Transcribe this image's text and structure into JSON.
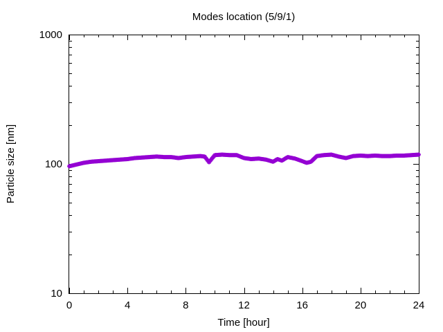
{
  "chart_data": {
    "type": "scatter",
    "title": "Modes location (5/9/1)",
    "xlabel": "Time [hour]",
    "ylabel": "Particle size [nm]",
    "xlim": [
      0,
      24
    ],
    "ylim": [
      10,
      1000
    ],
    "yscale": "log",
    "grid": false,
    "legend": "none",
    "xticks": [
      0,
      4,
      8,
      12,
      16,
      20,
      24
    ],
    "xtick_labels": [
      "0",
      "4",
      "8",
      "12",
      "16",
      "20",
      "24"
    ],
    "yticks": [
      10,
      100,
      1000
    ],
    "ytick_labels": [
      "10",
      "100",
      "1000"
    ],
    "marker": "star",
    "color": "#9400d3",
    "series": [
      {
        "x": [
          0,
          0.5,
          1,
          1.5,
          2,
          2.5,
          3,
          3.5,
          4,
          4.5,
          5,
          5.5,
          6,
          6.5,
          7,
          7.5,
          8,
          8.5,
          9,
          9.3,
          9.6,
          9.8,
          10,
          10.5,
          11,
          11.5,
          12,
          12.5,
          13,
          13.5,
          14,
          14.3,
          14.6,
          15,
          15.5,
          16,
          16.3,
          16.6,
          17,
          17.5,
          18,
          18.5,
          19,
          19.5,
          20,
          20.5,
          21,
          21.5,
          22,
          22.5,
          23,
          23.5,
          24
        ],
        "y": [
          96,
          99,
          102,
          104,
          105,
          106,
          107,
          108,
          109,
          111,
          112,
          113,
          114,
          113,
          113,
          111,
          113,
          114,
          115,
          114,
          103,
          110,
          117,
          118,
          117,
          117,
          111,
          109,
          110,
          108,
          104,
          109,
          106,
          113,
          110,
          105,
          102,
          104,
          115,
          117,
          118,
          114,
          111,
          115,
          116,
          115,
          116,
          115,
          115,
          116,
          116,
          117,
          118
        ]
      }
    ]
  }
}
